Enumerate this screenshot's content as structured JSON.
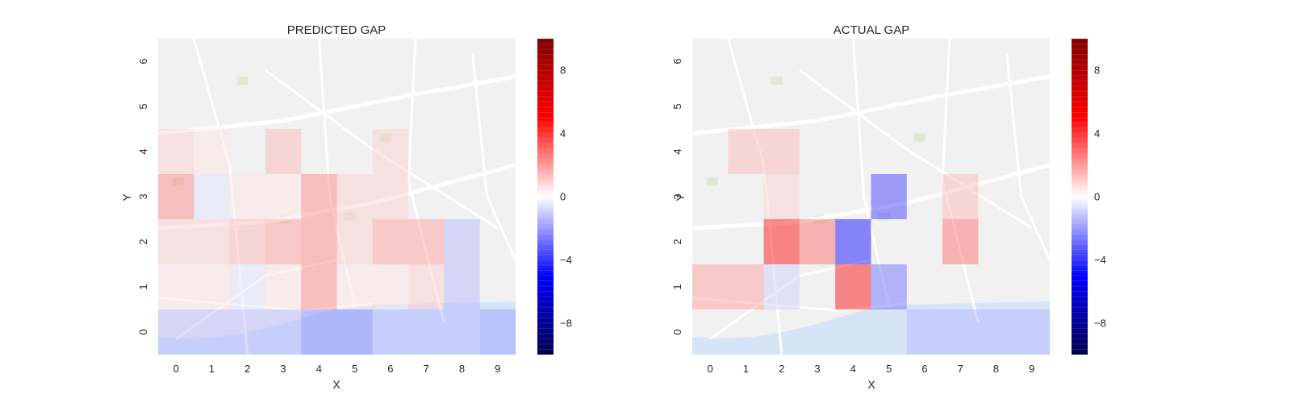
{
  "chart_data": [
    {
      "type": "heatmap",
      "title": "PREDICTED GAP",
      "xlabel": "X",
      "ylabel": "Y",
      "x_ticks": [
        "0",
        "1",
        "2",
        "3",
        "4",
        "5",
        "6",
        "7",
        "8",
        "9"
      ],
      "y_ticks": [
        "0",
        "1",
        "2",
        "3",
        "4",
        "5",
        "6"
      ],
      "colorbar": {
        "ticks": [
          -8,
          -4,
          0,
          4,
          8
        ],
        "labels": [
          "−8",
          "−4",
          "0",
          "4",
          "8"
        ],
        "range": [
          -10,
          10
        ],
        "colormap": "seismic"
      },
      "cells": [
        {
          "x": 0,
          "y": 0,
          "v": -1.5
        },
        {
          "x": 1,
          "y": 0,
          "v": -1.5
        },
        {
          "x": 2,
          "y": 0,
          "v": -1.5
        },
        {
          "x": 3,
          "y": 0,
          "v": -1.5
        },
        {
          "x": 4,
          "y": 0,
          "v": -2.5
        },
        {
          "x": 5,
          "y": 0,
          "v": -2.5
        },
        {
          "x": 6,
          "y": 0,
          "v": -1.5
        },
        {
          "x": 7,
          "y": 0,
          "v": -1.5
        },
        {
          "x": 8,
          "y": 0,
          "v": -1.5
        },
        {
          "x": 9,
          "y": 0,
          "v": -2
        },
        {
          "x": 0,
          "y": 1,
          "v": 0.5
        },
        {
          "x": 1,
          "y": 1,
          "v": 0.5
        },
        {
          "x": 2,
          "y": 1,
          "v": -0.5
        },
        {
          "x": 3,
          "y": 1,
          "v": 0.5
        },
        {
          "x": 4,
          "y": 1,
          "v": 2.5
        },
        {
          "x": 5,
          "y": 1,
          "v": 0.5
        },
        {
          "x": 6,
          "y": 1,
          "v": 0.5
        },
        {
          "x": 7,
          "y": 1,
          "v": 1
        },
        {
          "x": 8,
          "y": 1,
          "v": -1.5
        },
        {
          "x": 0,
          "y": 2,
          "v": 1
        },
        {
          "x": 1,
          "y": 2,
          "v": 1
        },
        {
          "x": 2,
          "y": 2,
          "v": 1.5
        },
        {
          "x": 3,
          "y": 2,
          "v": 2
        },
        {
          "x": 4,
          "y": 2,
          "v": 2.5
        },
        {
          "x": 5,
          "y": 2,
          "v": 1
        },
        {
          "x": 6,
          "y": 2,
          "v": 2
        },
        {
          "x": 7,
          "y": 2,
          "v": 2
        },
        {
          "x": 8,
          "y": 2,
          "v": -1.5
        },
        {
          "x": 0,
          "y": 3,
          "v": 2.5
        },
        {
          "x": 1,
          "y": 3,
          "v": -0.5
        },
        {
          "x": 2,
          "y": 3,
          "v": 0.5
        },
        {
          "x": 3,
          "y": 3,
          "v": 0.5
        },
        {
          "x": 4,
          "y": 3,
          "v": 2.5
        },
        {
          "x": 5,
          "y": 3,
          "v": 1
        },
        {
          "x": 6,
          "y": 3,
          "v": 1
        },
        {
          "x": 0,
          "y": 4,
          "v": 1
        },
        {
          "x": 1,
          "y": 4,
          "v": 0.5
        },
        {
          "x": 3,
          "y": 4,
          "v": 1.5
        },
        {
          "x": 6,
          "y": 4,
          "v": 1
        }
      ]
    },
    {
      "type": "heatmap",
      "title": "ACTUAL GAP",
      "xlabel": "X",
      "ylabel": "Y",
      "x_ticks": [
        "0",
        "1",
        "2",
        "3",
        "4",
        "5",
        "6",
        "7",
        "8",
        "9"
      ],
      "y_ticks": [
        "0",
        "1",
        "2",
        "3",
        "4",
        "5",
        "6"
      ],
      "colorbar": {
        "ticks": [
          -8,
          -4,
          0,
          4,
          8
        ],
        "labels": [
          "−8",
          "−4",
          "0",
          "4",
          "8"
        ],
        "range": [
          -10,
          10
        ],
        "colormap": "seismic"
      },
      "cells": [
        {
          "x": 6,
          "y": 0,
          "v": -1.5
        },
        {
          "x": 7,
          "y": 0,
          "v": -1.5
        },
        {
          "x": 8,
          "y": 0,
          "v": -1.5
        },
        {
          "x": 9,
          "y": 0,
          "v": -1.5
        },
        {
          "x": 0,
          "y": 1,
          "v": 2
        },
        {
          "x": 1,
          "y": 1,
          "v": 2
        },
        {
          "x": 2,
          "y": 1,
          "v": -1
        },
        {
          "x": 4,
          "y": 1,
          "v": 5
        },
        {
          "x": 5,
          "y": 1,
          "v": -3
        },
        {
          "x": 2,
          "y": 2,
          "v": 5
        },
        {
          "x": 3,
          "y": 2,
          "v": 3
        },
        {
          "x": 4,
          "y": 2,
          "v": -5
        },
        {
          "x": 7,
          "y": 2,
          "v": 3
        },
        {
          "x": 2,
          "y": 3,
          "v": 1
        },
        {
          "x": 5,
          "y": 3,
          "v": -4
        },
        {
          "x": 7,
          "y": 3,
          "v": 1.5
        },
        {
          "x": 1,
          "y": 4,
          "v": 1.5
        },
        {
          "x": 2,
          "y": 4,
          "v": 1.5
        }
      ]
    }
  ]
}
